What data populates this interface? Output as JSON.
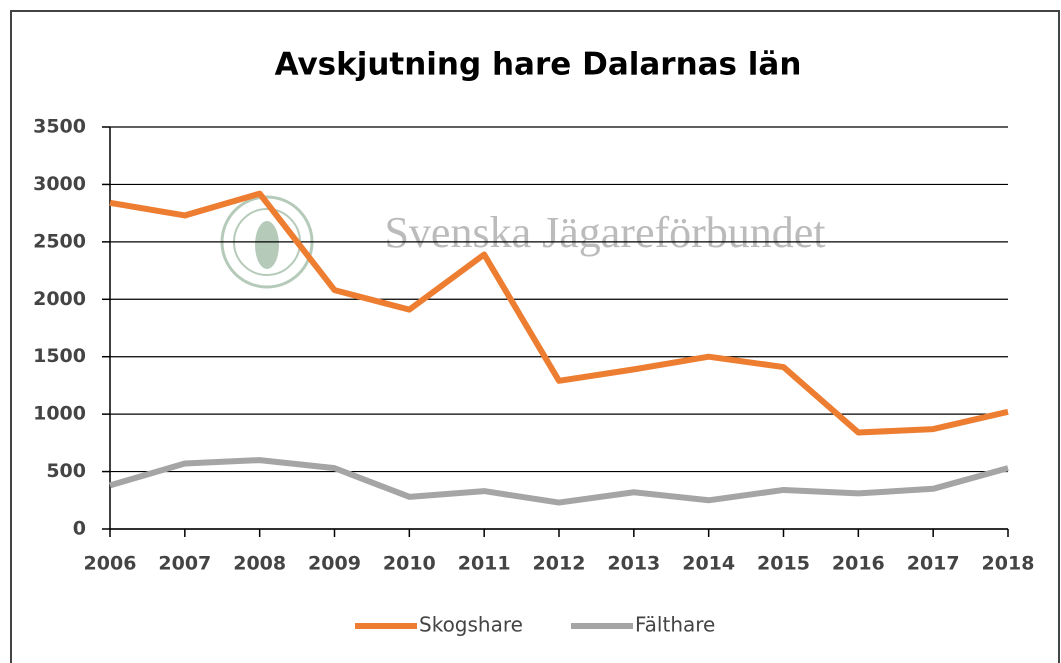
{
  "chart_data": {
    "type": "line",
    "title": "Avskjutning hare Dalarnas län",
    "watermark": "Svenska Jägareförbundet",
    "x": [
      2006,
      2007,
      2008,
      2009,
      2010,
      2011,
      2012,
      2013,
      2014,
      2015,
      2016,
      2017,
      2018
    ],
    "series": [
      {
        "name": "Skogshare",
        "color": "#ed7d31",
        "values": [
          2840,
          2730,
          2920,
          2080,
          1910,
          2390,
          1290,
          1390,
          1500,
          1410,
          840,
          870,
          1020
        ]
      },
      {
        "name": "Fälthare",
        "color": "#a5a5a5",
        "values": [
          380,
          570,
          600,
          530,
          280,
          330,
          230,
          320,
          250,
          340,
          310,
          350,
          530
        ]
      }
    ],
    "xlim": [
      2006,
      2018
    ],
    "xticks": [
      2006,
      2007,
      2008,
      2009,
      2010,
      2011,
      2012,
      2013,
      2014,
      2015,
      2016,
      2017,
      2018
    ],
    "ylim": [
      0,
      3500
    ],
    "yticks": [
      0,
      500,
      1000,
      1500,
      2000,
      2500,
      3000,
      3500
    ],
    "grid": true,
    "legend": "bottom"
  }
}
